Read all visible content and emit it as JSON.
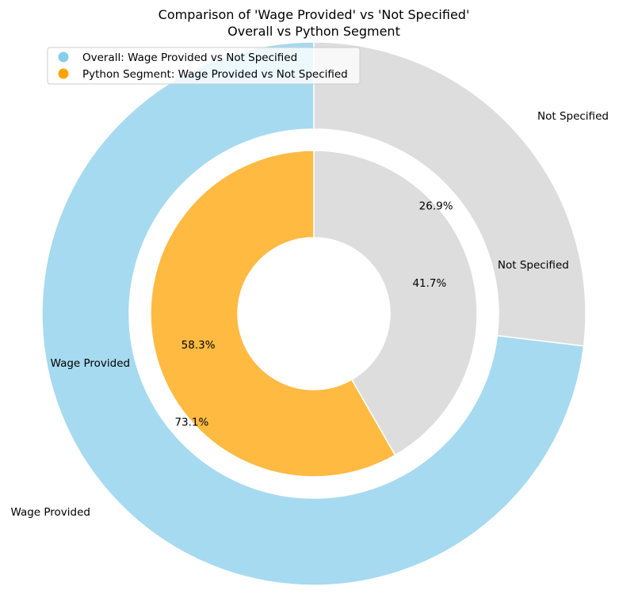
{
  "chart_data": {
    "type": "pie",
    "title": "Comparison of 'Wage Provided' vs 'Not Specified'",
    "subtitle": "Overall vs Python Segment",
    "rings": [
      {
        "name": "Overall",
        "categories": [
          "Wage Provided",
          "Not Specified"
        ],
        "values": [
          73.1,
          26.9
        ],
        "value_labels": [
          "73.1%",
          "26.9%"
        ],
        "colors": [
          "#a6daf0",
          "#dddddd"
        ]
      },
      {
        "name": "Python Segment",
        "categories": [
          "Wage Provided",
          "Not Specified"
        ],
        "values": [
          58.3,
          41.7
        ],
        "value_labels": [
          "58.3%",
          "41.7%"
        ],
        "colors": [
          "#ffba42",
          "#dddddd"
        ]
      }
    ],
    "legend": {
      "position": "top-left",
      "entries": [
        {
          "label": "Overall: Wage Provided vs Not Specified",
          "color": "#87ceeb"
        },
        {
          "label": "Python Segment: Wage Provided vs Not Specified",
          "color": "#ffa500"
        }
      ]
    }
  }
}
